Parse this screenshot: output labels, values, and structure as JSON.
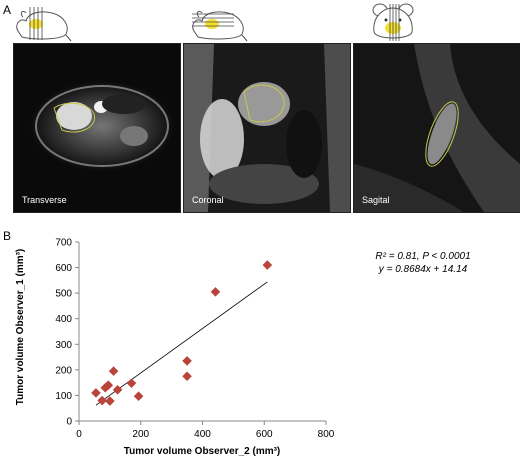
{
  "panels": {
    "a_label": "A",
    "b_label": "B"
  },
  "images": [
    {
      "view": "Transverse"
    },
    {
      "view": "Coronal"
    },
    {
      "view": "Sagital"
    }
  ],
  "icons": [
    "mouse-transverse-icon",
    "mouse-coronal-icon",
    "mouse-sagittal-icon"
  ],
  "colors": {
    "marker": "#b8443c",
    "highlight": "#f2e12e",
    "trend": "#000000"
  },
  "annotation": {
    "line1_r2": "R² = 0.81, ",
    "line1_p": "P < 0.0001",
    "line2": "y = 0.8684x + 14.14"
  },
  "chart_data": {
    "type": "scatter",
    "xlabel": "Tumor volume Observer_2 (mm³)",
    "ylabel": "Tumor volume Observer_1 (mm³)",
    "xlim": [
      0,
      800
    ],
    "ylim": [
      0,
      700
    ],
    "xticks": [
      "0",
      "200",
      "400",
      "600",
      "800"
    ],
    "yticks": [
      "0",
      "100",
      "200",
      "300",
      "400",
      "500",
      "600",
      "700"
    ],
    "marker": "diamond",
    "points": [
      {
        "x": 55,
        "y": 110
      },
      {
        "x": 75,
        "y": 80
      },
      {
        "x": 85,
        "y": 130
      },
      {
        "x": 95,
        "y": 140
      },
      {
        "x": 100,
        "y": 78
      },
      {
        "x": 112,
        "y": 195
      },
      {
        "x": 125,
        "y": 122
      },
      {
        "x": 170,
        "y": 148
      },
      {
        "x": 193,
        "y": 97
      },
      {
        "x": 350,
        "y": 235
      },
      {
        "x": 350,
        "y": 175
      },
      {
        "x": 442,
        "y": 505
      },
      {
        "x": 610,
        "y": 610
      }
    ],
    "trendline": {
      "slope": 0.8684,
      "intercept": 14.14,
      "x_range": [
        55,
        610
      ]
    }
  }
}
